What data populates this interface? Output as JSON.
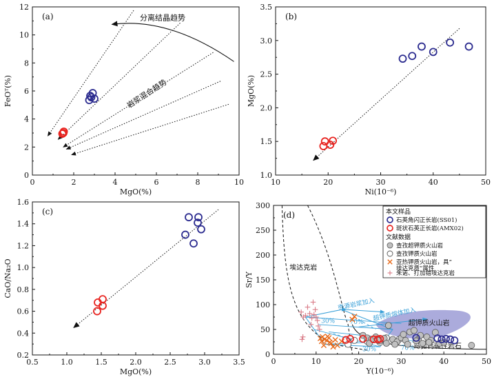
{
  "colors": {
    "blue": "#2b2b8f",
    "red": "#e8231f",
    "orange": "#e86a1a",
    "pink": "#d97a86",
    "cyan": "#3aa0d8",
    "gray_fill": "#c0c0c0",
    "purple_fill": "#9c9cd6"
  },
  "chart_data": [
    {
      "id": "a",
      "type": "scatter",
      "panel_label": "(a)",
      "xlabel": "MgO(%)",
      "ylabel": "FeOᵀ(%)",
      "xlim": [
        0,
        10
      ],
      "ylim": [
        0,
        12
      ],
      "xticks": [
        0,
        2,
        4,
        6,
        8,
        10
      ],
      "yticks": [
        0,
        2,
        4,
        6,
        8,
        10,
        12
      ],
      "series": [
        {
          "color": "blue",
          "points": [
            [
              2.75,
              5.35
            ],
            [
              2.85,
              5.55
            ],
            [
              2.92,
              5.85
            ],
            [
              3.0,
              5.45
            ],
            [
              2.8,
              5.65
            ]
          ]
        },
        {
          "color": "red",
          "points": [
            [
              1.45,
              2.95
            ],
            [
              1.52,
              3.1
            ],
            [
              1.5,
              3.0
            ]
          ]
        }
      ],
      "annotations": [
        {
          "text": "分离结晶趋势",
          "x": 6.3,
          "y": 11.05
        },
        {
          "text": "岩浆混合趋势",
          "x": 5.6,
          "y": 5.65,
          "rotate": -33
        }
      ],
      "trend_lines": [
        [
          [
            4.9,
            11.75
          ],
          [
            0.75,
            2.8
          ]
        ],
        [
          [
            7.15,
            10.85
          ],
          [
            1.25,
            2.55
          ]
        ],
        [
          [
            8.75,
            8.75
          ],
          [
            1.5,
            2.0
          ]
        ],
        [
          [
            9.1,
            6.7
          ],
          [
            1.65,
            1.85
          ]
        ],
        [
          [
            9.5,
            5.05
          ],
          [
            1.9,
            1.45
          ]
        ]
      ],
      "curve_arrow": [
        [
          9.75,
          8.1
        ],
        [
          6.6,
          11.3
        ],
        [
          3.85,
          10.75
        ]
      ]
    },
    {
      "id": "b",
      "type": "scatter",
      "panel_label": "(b)",
      "xlabel": "Ni(10⁻⁶)",
      "ylabel": "MgO(%)",
      "xlim": [
        10,
        50
      ],
      "ylim": [
        1.0,
        3.5
      ],
      "xticks": [
        10,
        20,
        30,
        40,
        50
      ],
      "yticks": [
        1.0,
        1.5,
        2.0,
        2.5,
        3.0,
        3.5
      ],
      "series": [
        {
          "color": "blue",
          "points": [
            [
              34.2,
              2.73
            ],
            [
              36.0,
              2.77
            ],
            [
              37.8,
              2.91
            ],
            [
              40.0,
              2.83
            ],
            [
              43.2,
              2.97
            ],
            [
              46.8,
              2.91
            ]
          ]
        },
        {
          "color": "red",
          "points": [
            [
              19.1,
              1.43
            ],
            [
              19.4,
              1.5
            ],
            [
              20.4,
              1.45
            ],
            [
              20.9,
              1.51
            ]
          ]
        }
      ],
      "trend_line": [
        [
          45.0,
          3.18
        ],
        [
          17.2,
          1.22
        ]
      ]
    },
    {
      "id": "c",
      "type": "scatter",
      "panel_label": "(c)",
      "xlabel": "MgO(%)",
      "ylabel": "CaO/Na₂O",
      "xlim": [
        0.5,
        3.5
      ],
      "ylim": [
        0.2,
        1.6
      ],
      "xticks": [
        0.5,
        1.0,
        1.5,
        2.0,
        2.5,
        3.0,
        3.5
      ],
      "yticks": [
        0.2,
        0.4,
        0.6,
        0.8,
        1.0,
        1.2,
        1.4,
        1.6
      ],
      "series": [
        {
          "color": "blue",
          "points": [
            [
              2.77,
              1.46
            ],
            [
              2.72,
              1.3
            ],
            [
              2.91,
              1.46
            ],
            [
              2.9,
              1.41
            ],
            [
              2.95,
              1.35
            ],
            [
              2.84,
              1.22
            ]
          ]
        },
        {
          "color": "red",
          "points": [
            [
              1.45,
              0.68
            ],
            [
              1.52,
              0.71
            ],
            [
              1.52,
              0.65
            ],
            [
              1.44,
              0.6
            ]
          ]
        }
      ],
      "trend_line": [
        [
          3.2,
          1.53
        ],
        [
          1.1,
          0.45
        ]
      ]
    },
    {
      "id": "d",
      "type": "scatter",
      "panel_label": "(d)",
      "xlabel": "Y(10⁻⁶)",
      "ylabel": "Sr/Y",
      "xlim": [
        0,
        50
      ],
      "ylim": [
        0,
        300
      ],
      "xticks": [
        0,
        10,
        20,
        30,
        40,
        50
      ],
      "yticks": [
        0,
        50,
        100,
        150,
        200,
        250,
        300
      ],
      "field_labels": [
        {
          "text": "埃达克岩",
          "x": 7.0,
          "y": 170
        },
        {
          "text": "超钾质火山岩",
          "x": 36.5,
          "y": 58
        },
        {
          "text": "岛弧钙碱性岩石",
          "x": 38.5,
          "y": 12
        }
      ],
      "mixing_labels": [
        {
          "text": "壳源岩浆加入",
          "x": 19.5,
          "y": 97,
          "rotate": -12
        },
        {
          "text": "超钾质熔体加入",
          "x": 28.5,
          "y": 77,
          "rotate": -12
        },
        {
          "text": "30%",
          "x": 12.8,
          "y": 63
        },
        {
          "text": "70%",
          "x": 19.5,
          "y": 61
        },
        {
          "text": "30%",
          "x": 22.5,
          "y": 6
        },
        {
          "text": "70%",
          "x": 31.5,
          "y": 9
        }
      ],
      "series": [
        {
          "name": "石英角闪正长岩(SS01)",
          "marker": "open-circle",
          "color": "blue",
          "points": [
            [
              33.5,
              33
            ],
            [
              38.5,
              32
            ],
            [
              39.5,
              30
            ],
            [
              40.5,
              31
            ],
            [
              41.5,
              30
            ],
            [
              42.5,
              28
            ]
          ]
        },
        {
          "name": "斑状石英正长岩(AMX02)",
          "marker": "open-circle",
          "color": "red",
          "points": [
            [
              17.0,
              29
            ],
            [
              18.0,
              31
            ],
            [
              21.0,
              31
            ],
            [
              23.5,
              30
            ],
            [
              24.5,
              30
            ],
            [
              25.0,
              31
            ]
          ]
        },
        {
          "name": "查孜超钾质火山岩",
          "marker": "filled-circle",
          "color": "gray_fill",
          "points": [
            [
              21.0,
              38
            ],
            [
              22.0,
              33
            ],
            [
              23.0,
              30
            ],
            [
              24.0,
              35
            ],
            [
              25.0,
              27
            ],
            [
              26.0,
              32
            ],
            [
              27.0,
              58
            ],
            [
              28.0,
              30
            ],
            [
              29.0,
              25
            ],
            [
              30.0,
              33
            ],
            [
              31.0,
              28
            ],
            [
              32.0,
              45
            ],
            [
              33.0,
              48
            ],
            [
              34.0,
              30
            ],
            [
              35.0,
              22
            ],
            [
              36.0,
              35
            ],
            [
              37.0,
              28
            ],
            [
              38.0,
              44
            ],
            [
              39.0,
              22
            ],
            [
              40.0,
              24
            ],
            [
              22.5,
              22
            ],
            [
              26.5,
              22
            ],
            [
              31.5,
              20
            ],
            [
              33.5,
              27
            ],
            [
              30.5,
              40
            ],
            [
              34.5,
              38
            ],
            [
              28.5,
              20
            ],
            [
              46.5,
              18
            ],
            [
              36.5,
              24
            ],
            [
              24.5,
              28
            ]
          ]
        },
        {
          "name": "查孜钾质火山岩",
          "marker": "open-circle",
          "color": "gray_open",
          "points": [
            [
              17.5,
              20
            ],
            [
              19.0,
              28
            ],
            [
              22.0,
              26
            ],
            [
              25.0,
              24
            ],
            [
              27.0,
              26
            ],
            [
              29.5,
              30
            ],
            [
              35.0,
              28
            ],
            [
              26.5,
              33
            ]
          ]
        },
        {
          "name": "亚热钾质火山岩，具“埃达克质”属性",
          "marker": "x-cross",
          "color": "orange",
          "points": [
            [
              11.0,
              32
            ],
            [
              11.5,
              35
            ],
            [
              12.0,
              30
            ],
            [
              12.5,
              28
            ],
            [
              13.0,
              33
            ],
            [
              13.5,
              22
            ],
            [
              11.8,
              18
            ],
            [
              14.0,
              15
            ],
            [
              15.0,
              18
            ],
            [
              16.0,
              26
            ],
            [
              12.7,
              36
            ],
            [
              18.5,
              70
            ],
            [
              19.0,
              76
            ],
            [
              13.2,
              24
            ],
            [
              14.5,
              29
            ],
            [
              11.3,
              26
            ]
          ]
        },
        {
          "name": "朱诺、打加错埃达克岩",
          "marker": "plus",
          "color": "pink",
          "points": [
            [
              6.5,
              85
            ],
            [
              7.5,
              78
            ],
            [
              8.0,
              95
            ],
            [
              8.5,
              82
            ],
            [
              9.0,
              73
            ],
            [
              9.5,
              80
            ],
            [
              10.0,
              75
            ],
            [
              9.8,
              90
            ],
            [
              10.3,
              68
            ],
            [
              8.8,
              60
            ],
            [
              10.5,
              57
            ],
            [
              7.0,
              75
            ],
            [
              6.7,
              30
            ],
            [
              6.9,
              35
            ],
            [
              9.3,
              105
            ],
            [
              10.8,
              50
            ]
          ]
        }
      ],
      "legend": {
        "title1": "本文样品",
        "title2": "文献数据"
      }
    }
  ]
}
